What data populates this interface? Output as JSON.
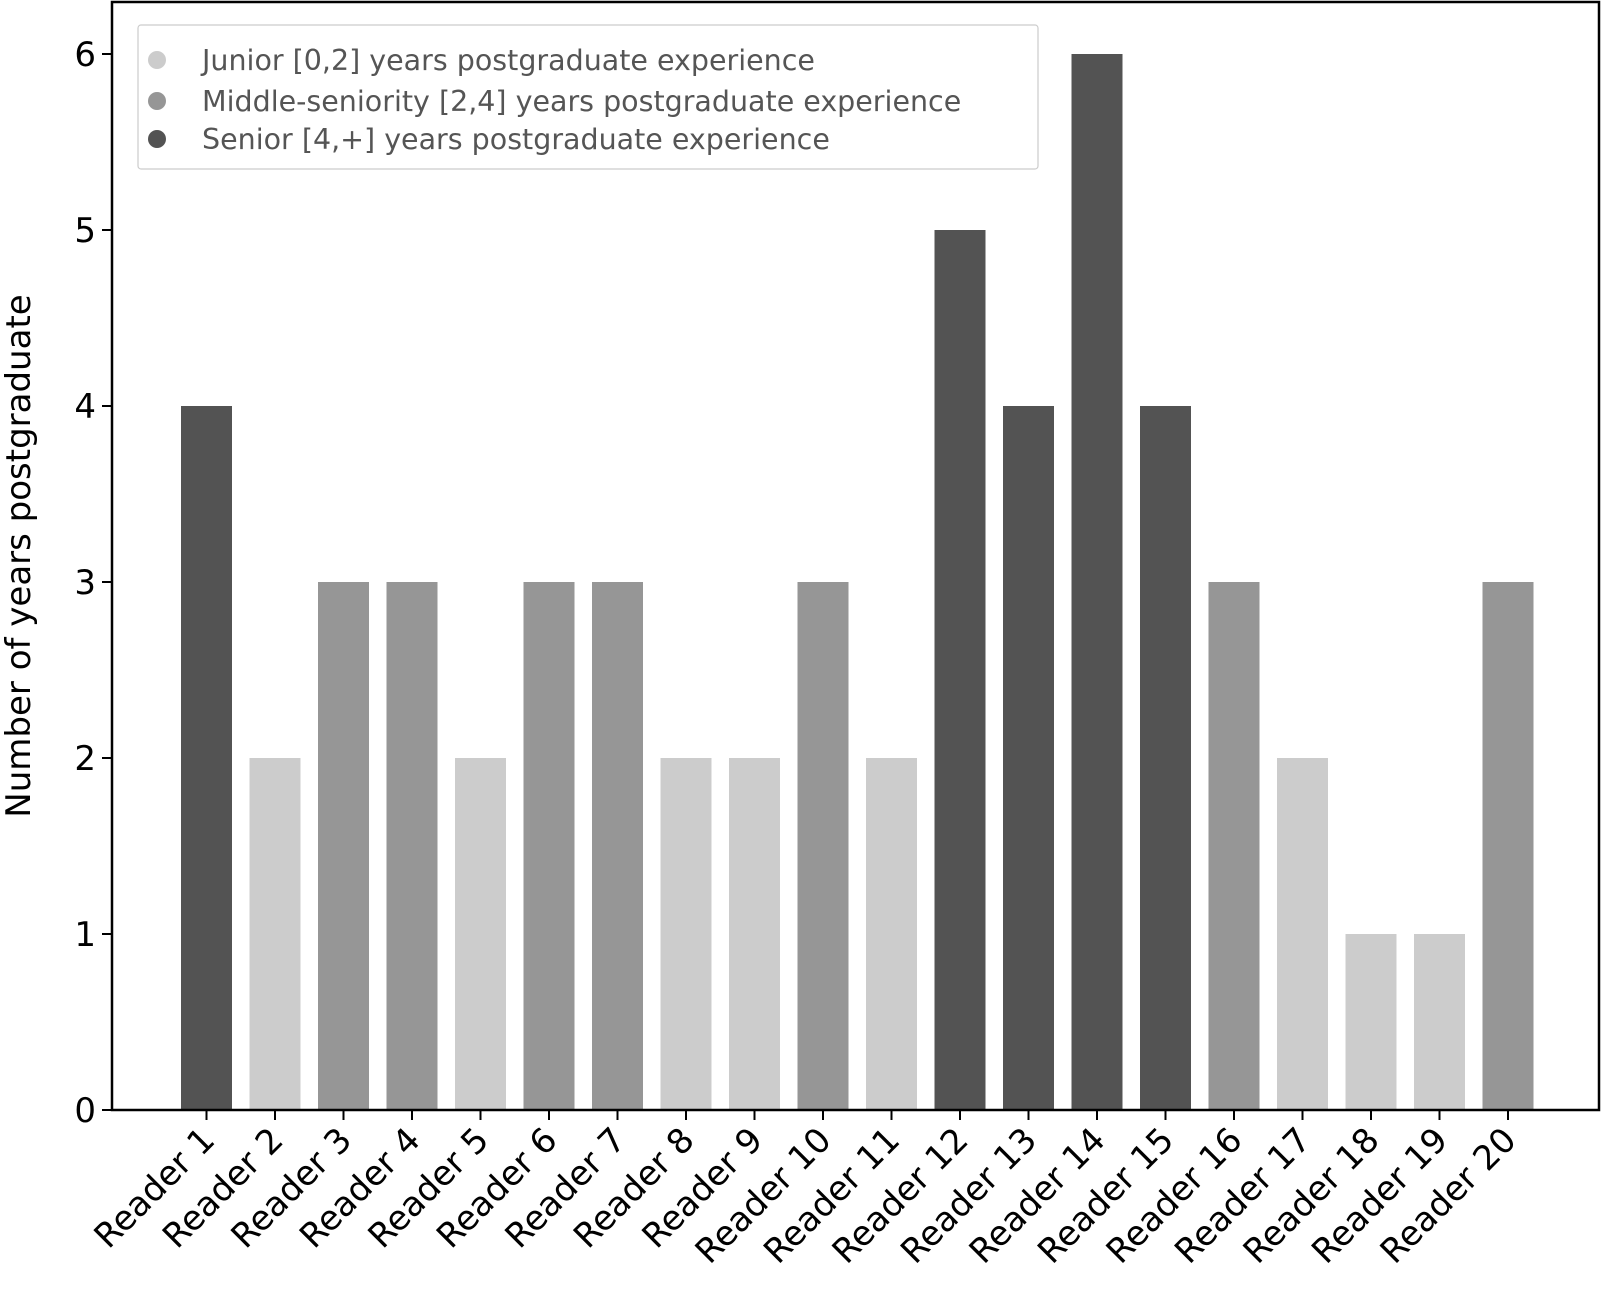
{
  "colors": {
    "junior": "#cccccc",
    "middle": "#969696",
    "senior": "#535353",
    "axis": "#000000",
    "legend_border": "#cccccc",
    "legend_text": "#555555"
  },
  "chart_data": {
    "type": "bar",
    "title": "",
    "xlabel": "",
    "ylabel": "Number of years postgraduate",
    "ylim": [
      0,
      6.2
    ],
    "yticks": [
      0,
      1,
      2,
      3,
      4,
      5,
      6
    ],
    "grid": false,
    "legend_position": "top-left",
    "categories": [
      "Reader 1",
      "Reader 2",
      "Reader 3",
      "Reader 4",
      "Reader 5",
      "Reader 6",
      "Reader 7",
      "Reader 8",
      "Reader 9",
      "Reader 10",
      "Reader 11",
      "Reader 12",
      "Reader 13",
      "Reader 14",
      "Reader 15",
      "Reader 16",
      "Reader 17",
      "Reader 18",
      "Reader 19",
      "Reader 20"
    ],
    "values": [
      4,
      2,
      3,
      3,
      2,
      3,
      3,
      2,
      2,
      3,
      2,
      5,
      4,
      6,
      4,
      3,
      2,
      1,
      1,
      3
    ],
    "groups": [
      "senior",
      "junior",
      "middle",
      "middle",
      "junior",
      "middle",
      "middle",
      "junior",
      "junior",
      "middle",
      "junior",
      "senior",
      "senior",
      "senior",
      "senior",
      "middle",
      "junior",
      "junior",
      "junior",
      "middle"
    ],
    "legend": [
      {
        "key": "junior",
        "label": "Junior [0,2] years postgraduate experience"
      },
      {
        "key": "middle",
        "label": "Middle-seniority [2,4] years postgraduate experience"
      },
      {
        "key": "senior",
        "label": "Senior [4,+] years postgraduate experience"
      }
    ]
  }
}
